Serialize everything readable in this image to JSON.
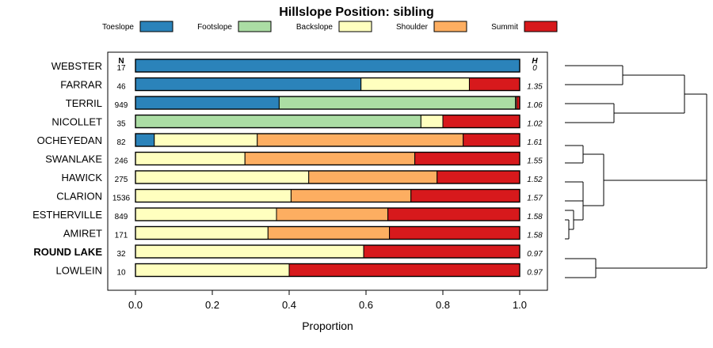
{
  "chart_data": {
    "type": "bar",
    "orientation": "horizontal",
    "stacked": true,
    "title": "Hillslope Position: sibling",
    "xlabel": "Proportion",
    "xlim": [
      0,
      1
    ],
    "xticks": [
      "0.0",
      "0.2",
      "0.4",
      "0.6",
      "0.8",
      "1.0"
    ],
    "legend_position": "top",
    "n_header": "N",
    "h_header": "H",
    "legend": [
      {
        "name": "Toeslope",
        "color": "#2B83BA"
      },
      {
        "name": "Footslope",
        "color": "#ABDDA4"
      },
      {
        "name": "Backslope",
        "color": "#FFFFBF"
      },
      {
        "name": "Shoulder",
        "color": "#FDAE61"
      },
      {
        "name": "Summit",
        "color": "#D7191C"
      }
    ],
    "rows": [
      {
        "name": "WEBSTER",
        "n": "17",
        "h": "0",
        "bold": false,
        "values": [
          1.0,
          0,
          0,
          0,
          0
        ]
      },
      {
        "name": "FARRAR",
        "n": "46",
        "h": "1.35",
        "bold": false,
        "values": [
          0.587,
          0,
          0.282,
          0,
          0.131
        ]
      },
      {
        "name": "TERRIL",
        "n": "949",
        "h": "1.06",
        "bold": false,
        "values": [
          0.374,
          0.615,
          0.003,
          0,
          0.008
        ]
      },
      {
        "name": "NICOLLET",
        "n": "35",
        "h": "1.02",
        "bold": false,
        "values": [
          0,
          0.743,
          0.057,
          0,
          0.2
        ]
      },
      {
        "name": "OCHEYEDAN",
        "n": "82",
        "h": "1.61",
        "bold": false,
        "values": [
          0.049,
          0,
          0.268,
          0.536,
          0.147
        ]
      },
      {
        "name": "SWANLAKE",
        "n": "246",
        "h": "1.55",
        "bold": false,
        "values": [
          0,
          0,
          0.285,
          0.442,
          0.273
        ]
      },
      {
        "name": "HAWICK",
        "n": "275",
        "h": "1.52",
        "bold": false,
        "values": [
          0,
          0,
          0.451,
          0.334,
          0.215
        ]
      },
      {
        "name": "CLARION",
        "n": "1536",
        "h": "1.57",
        "bold": false,
        "values": [
          0,
          0,
          0.405,
          0.312,
          0.283
        ]
      },
      {
        "name": "ESTHERVILLE",
        "n": "849",
        "h": "1.58",
        "bold": false,
        "values": [
          0,
          0,
          0.367,
          0.29,
          0.343
        ]
      },
      {
        "name": "AMIRET",
        "n": "171",
        "h": "1.58",
        "bold": false,
        "values": [
          0,
          0,
          0.345,
          0.316,
          0.339
        ]
      },
      {
        "name": "ROUND LAKE",
        "n": "32",
        "h": "0.97",
        "bold": true,
        "values": [
          0,
          0,
          0.594,
          0,
          0.406
        ]
      },
      {
        "name": "LOWLEIN",
        "n": "10",
        "h": "0.97",
        "bold": false,
        "values": [
          0,
          0,
          0.4,
          0,
          0.6
        ]
      }
    ]
  }
}
